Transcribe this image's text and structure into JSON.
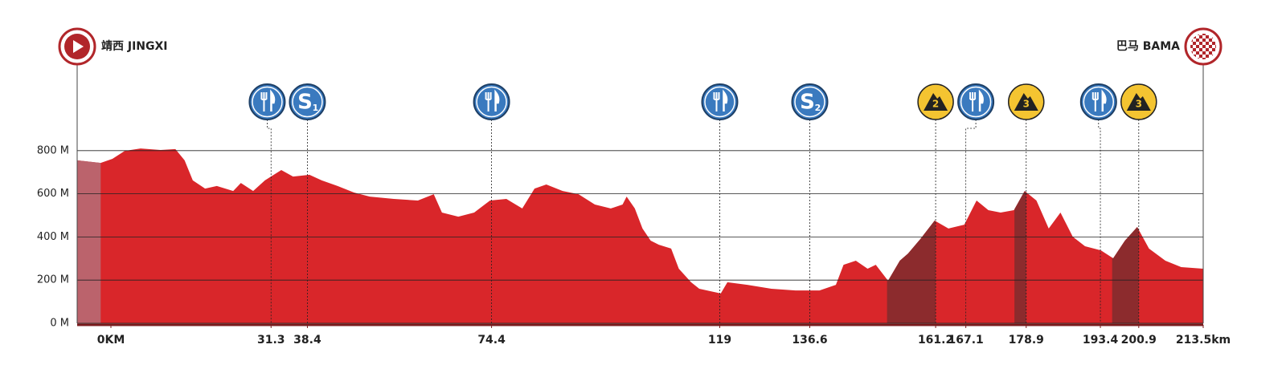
{
  "chart_data": {
    "type": "area",
    "start_label": "靖西 JINGXI",
    "finish_label": "巴马 BAMA",
    "color": "#d9262a",
    "neutral_color": "#bb636c",
    "climb_color": "#8c2b2d",
    "x": [
      -6.6,
      -2.0,
      0.3,
      2.7,
      5.8,
      9.7,
      12.6,
      14.4,
      16.0,
      18.4,
      20.7,
      23.9,
      25.4,
      27.8,
      30.1,
      33.3,
      35.6,
      38.8,
      41.2,
      44.3,
      47.5,
      50.6,
      55.3,
      60.0,
      63.1,
      64.7,
      67.9,
      71.0,
      74.1,
      77.3,
      80.4,
      82.8,
      85.1,
      88.3,
      91.4,
      94.6,
      97.7,
      100.0,
      100.8,
      102.4,
      103.9,
      105.5,
      107.1,
      109.5,
      111.0,
      113.4,
      115.0,
      119.2,
      120.5,
      124.4,
      129.1,
      133.8,
      138.5,
      141.7,
      143.2,
      145.6,
      147.9,
      149.5,
      151.9,
      154.2,
      155.8,
      158.2,
      161.0,
      163.7,
      166.8,
      169.2,
      171.5,
      173.9,
      176.5,
      178.6,
      180.9,
      183.3,
      185.6,
      188.0,
      190.4,
      193.5,
      195.9,
      198.2,
      200.6,
      202.9,
      206.1,
      209.2,
      213.5
    ],
    "values": [
      755,
      743,
      762,
      799,
      810,
      803,
      807,
      755,
      662,
      624,
      636,
      613,
      650,
      613,
      662,
      710,
      680,
      688,
      662,
      636,
      606,
      587,
      576,
      569,
      598,
      513,
      494,
      513,
      569,
      576,
      532,
      624,
      643,
      613,
      598,
      550,
      532,
      550,
      587,
      532,
      439,
      383,
      364,
      346,
      253,
      190,
      160,
      138,
      190,
      178,
      160,
      152,
      152,
      178,
      271,
      290,
      253,
      271,
      197,
      290,
      323,
      390,
      476,
      439,
      457,
      569,
      524,
      513,
      524,
      613,
      569,
      439,
      513,
      401,
      357,
      338,
      301,
      383,
      446,
      346,
      290,
      260,
      253
    ],
    "neutral": [
      -6.6,
      -2.0
    ],
    "climbs": [
      [
        151.7,
        161.2
      ],
      [
        176.6,
        178.9
      ],
      [
        195.7,
        200.9
      ]
    ],
    "xlim": [
      -6.6,
      213.5
    ],
    "ylim": [
      0,
      1000
    ],
    "yticks": [
      {
        "value": 0,
        "label": "0 M"
      },
      {
        "value": 200,
        "label": "200 M"
      },
      {
        "value": 400,
        "label": "400 M"
      },
      {
        "value": 600,
        "label": "600 M"
      },
      {
        "value": 800,
        "label": "800 M"
      }
    ],
    "xticks": [
      {
        "value": 0,
        "label": "0KM"
      },
      31.3,
      38.4,
      74.4,
      119,
      136.6,
      161.2,
      167.1,
      178.9,
      193.4,
      200.9,
      {
        "value": 213.5,
        "label": "213.5km"
      }
    ],
    "markers": [
      {
        "km": 31.3,
        "kind": "feed"
      },
      {
        "km": 38.4,
        "kind": "sprint",
        "symbol": "S",
        "label": "1"
      },
      {
        "km": 74.4,
        "kind": "feed"
      },
      {
        "km": 119,
        "kind": "feed"
      },
      {
        "km": 136.6,
        "kind": "sprint",
        "symbol": "S",
        "label": "2"
      },
      {
        "km": 161.2,
        "kind": "climb",
        "label": "2"
      },
      {
        "km": 167.1,
        "kind": "feed"
      },
      {
        "km": 178.9,
        "kind": "climb",
        "label": "3"
      },
      {
        "km": 193.4,
        "kind": "feed"
      },
      {
        "km": 200.9,
        "kind": "climb",
        "label": "3"
      }
    ]
  }
}
